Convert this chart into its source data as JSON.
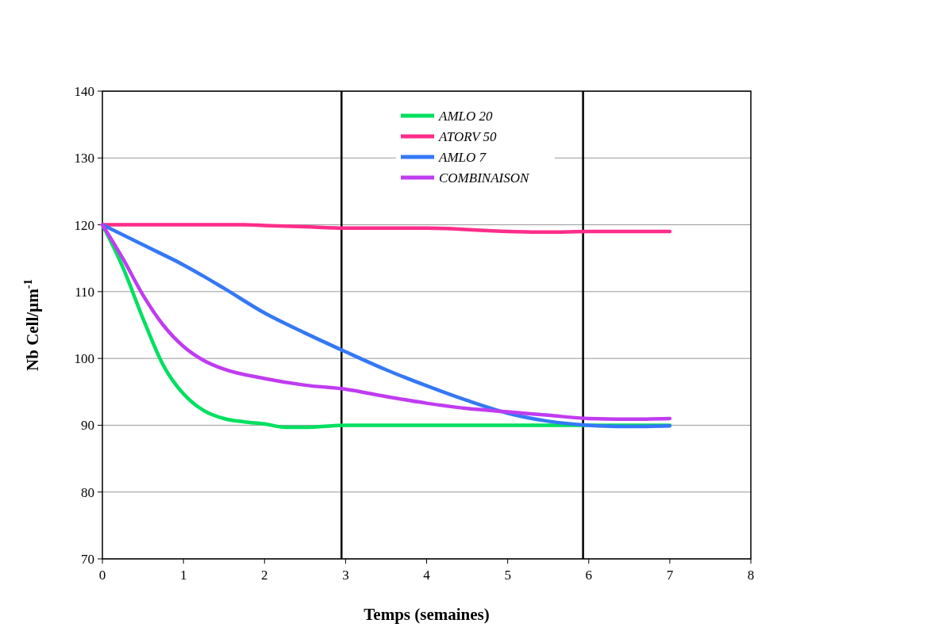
{
  "chart_data": {
    "type": "line",
    "xlabel": "Temps (semaines)",
    "ylabel": "Nb Cell/µm$^{-1}$",
    "xlim": [
      0,
      8
    ],
    "xticks": [
      0,
      1,
      2,
      3,
      4,
      5,
      6,
      7,
      8
    ],
    "ylim": [
      70,
      140
    ],
    "yticks": [
      70,
      80,
      90,
      100,
      110,
      120,
      130,
      140
    ],
    "grid": "y",
    "legend": "top",
    "marker": "none",
    "line_style": "solid",
    "ref_lines": [
      {
        "axis": "x",
        "value": 2.95,
        "color": "#000000"
      },
      {
        "axis": "x",
        "value": 5.93,
        "color": "#000000"
      }
    ],
    "series": [
      {
        "name": "AMLO 20",
        "color": "#00e060",
        "x": [
          0,
          0.25,
          0.5,
          0.75,
          1,
          1.25,
          1.5,
          1.75,
          2,
          2.25,
          2.5,
          3,
          4,
          5,
          6,
          7
        ],
        "values": [
          120,
          113.7,
          106,
          99,
          94.7,
          92.2,
          91,
          90.5,
          90.2,
          89.7,
          89.7,
          90,
          90,
          90,
          90,
          90
        ]
      },
      {
        "name": "ATORV 50",
        "color": "#ff2d8a",
        "x": [
          0,
          1,
          1.75,
          2,
          2.5,
          3,
          4,
          5,
          5.5,
          6,
          7
        ],
        "values": [
          120,
          120,
          120,
          119.9,
          119.7,
          119.5,
          119.5,
          119,
          118.9,
          119,
          119
        ]
      },
      {
        "name": "AMLO 7",
        "color": "#3478f6",
        "x": [
          0,
          0.5,
          1,
          1.5,
          2,
          2.5,
          3,
          3.5,
          4,
          4.5,
          5,
          5.5,
          6,
          6.5,
          7
        ],
        "values": [
          120,
          117,
          114,
          110.5,
          106.8,
          103.8,
          101,
          98.3,
          95.9,
          93.7,
          91.8,
          90.6,
          90,
          89.8,
          89.9
        ]
      },
      {
        "name": "COMBINAISON",
        "color": "#c03cf0",
        "x": [
          0,
          0.25,
          0.5,
          0.75,
          1,
          1.25,
          1.5,
          2,
          2.5,
          3,
          3.5,
          4,
          4.5,
          5,
          5.5,
          6,
          6.5,
          7
        ],
        "values": [
          120,
          115,
          109.5,
          105,
          101.8,
          99.7,
          98.4,
          97,
          96,
          95.4,
          94.3,
          93.3,
          92.5,
          92,
          91.5,
          91,
          90.9,
          91
        ]
      }
    ]
  }
}
